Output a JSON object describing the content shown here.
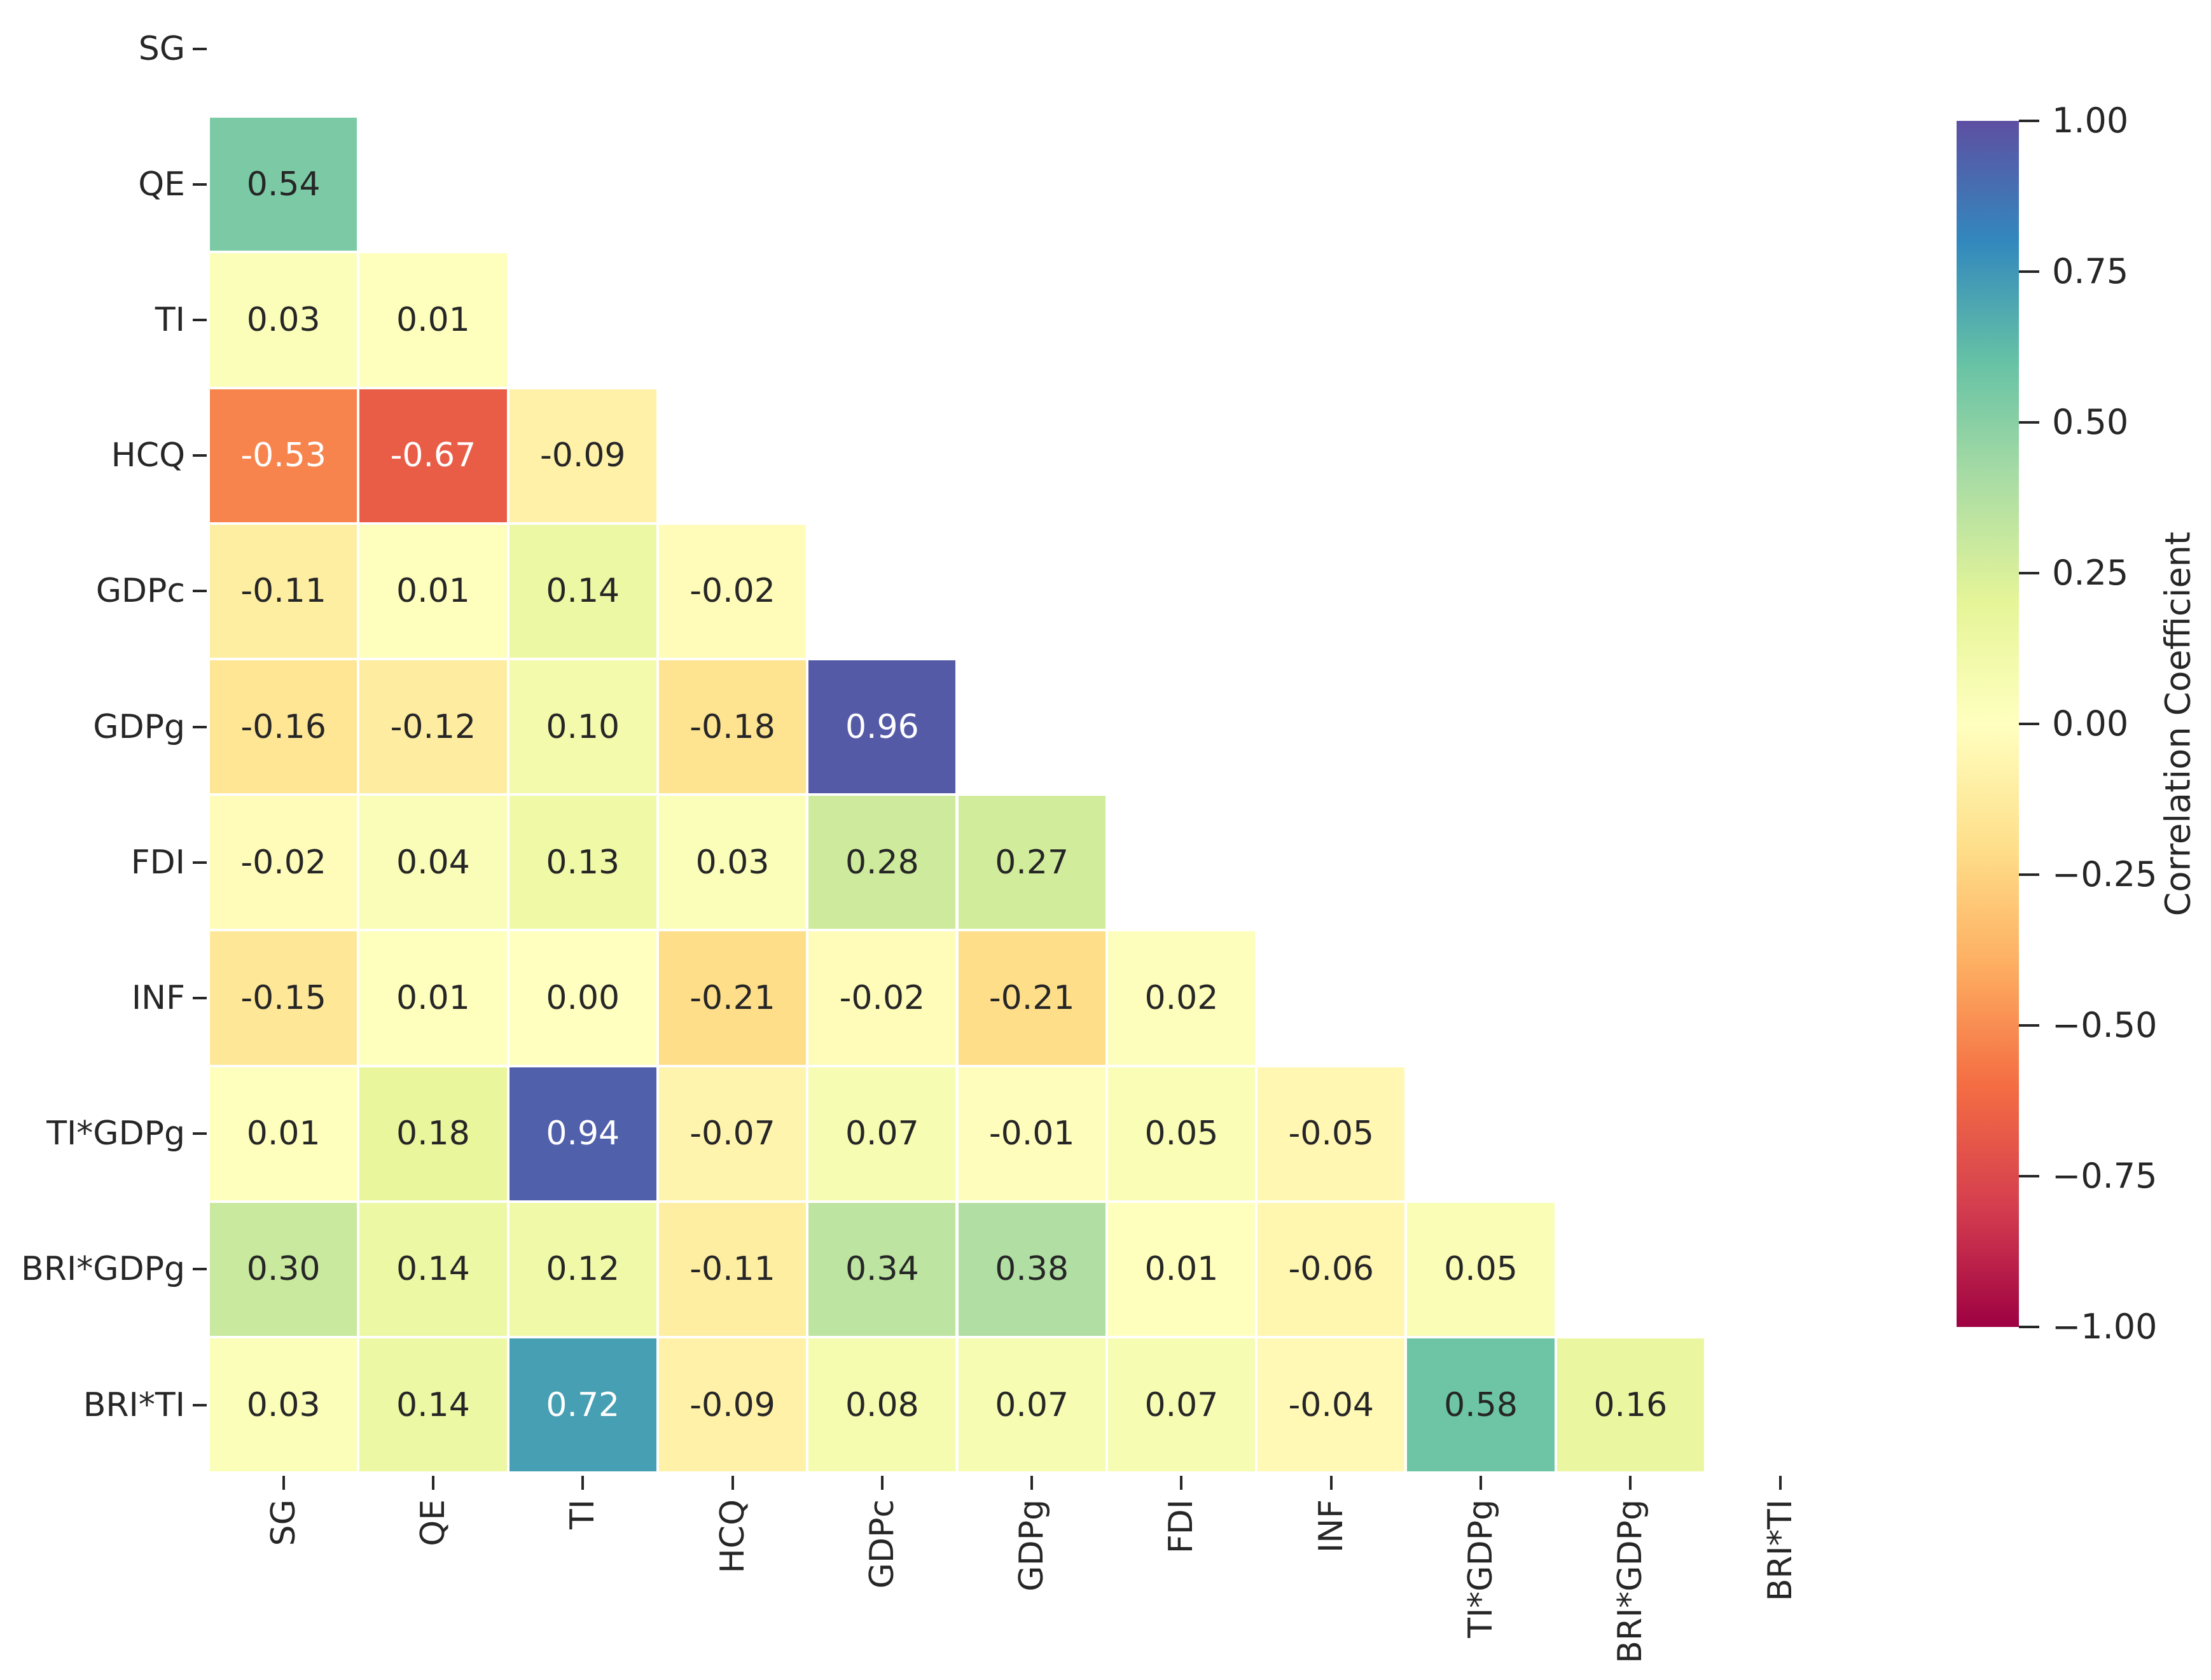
{
  "chart_data": {
    "type": "heatmap",
    "title": "",
    "colormap": "Spectral",
    "vmin": -1.0,
    "vmax": 1.0,
    "mask": "upper triangle including diagonal",
    "value_format": "2dp",
    "colorbar_label": "Correlation Coefficient",
    "colorbar_ticks": [
      "1.00",
      "0.75",
      "0.50",
      "0.25",
      "0.00",
      "−0.25",
      "−0.50",
      "−0.75",
      "−1.00"
    ],
    "colorbar_tick_values": [
      1.0,
      0.75,
      0.5,
      0.25,
      0.0,
      -0.25,
      -0.5,
      -0.75,
      -1.0
    ],
    "labels": [
      "SG",
      "QE",
      "TI",
      "HCQ",
      "GDPc",
      "GDPg",
      "FDI",
      "INF",
      "TI*GDPg",
      "BRI*GDPg",
      "BRI*TI"
    ],
    "rows": [
      {
        "label": "SG",
        "values": []
      },
      {
        "label": "QE",
        "values": [
          0.54
        ]
      },
      {
        "label": "TI",
        "values": [
          0.03,
          0.01
        ]
      },
      {
        "label": "HCQ",
        "values": [
          -0.53,
          -0.67,
          -0.09
        ]
      },
      {
        "label": "GDPc",
        "values": [
          -0.11,
          0.01,
          0.14,
          -0.02
        ]
      },
      {
        "label": "GDPg",
        "values": [
          -0.16,
          -0.12,
          0.1,
          -0.18,
          0.96
        ]
      },
      {
        "label": "FDI",
        "values": [
          -0.02,
          0.04,
          0.13,
          0.03,
          0.28,
          0.27
        ]
      },
      {
        "label": "INF",
        "values": [
          -0.15,
          0.01,
          0.0,
          -0.21,
          -0.02,
          -0.21,
          0.02
        ]
      },
      {
        "label": "TI*GDPg",
        "values": [
          0.01,
          0.18,
          0.94,
          -0.07,
          0.07,
          -0.01,
          0.05,
          -0.05
        ]
      },
      {
        "label": "BRI*GDPg",
        "values": [
          0.3,
          0.14,
          0.12,
          -0.11,
          0.34,
          0.38,
          0.01,
          -0.06,
          0.05
        ]
      },
      {
        "label": "BRI*TI",
        "values": [
          0.03,
          0.14,
          0.72,
          -0.09,
          0.08,
          0.07,
          0.07,
          -0.04,
          0.58,
          0.16
        ]
      }
    ]
  },
  "colors": {
    "background": "#ffffff",
    "tick_text": "#262626",
    "annot_dark": "#262626",
    "annot_light": "#ffffff",
    "spectral_stops": [
      "#9e0142",
      "#d53e4f",
      "#f46d43",
      "#fdae61",
      "#fee08b",
      "#ffffbf",
      "#e6f598",
      "#abdda4",
      "#66c2a5",
      "#3288bd",
      "#5e4fa2"
    ]
  }
}
